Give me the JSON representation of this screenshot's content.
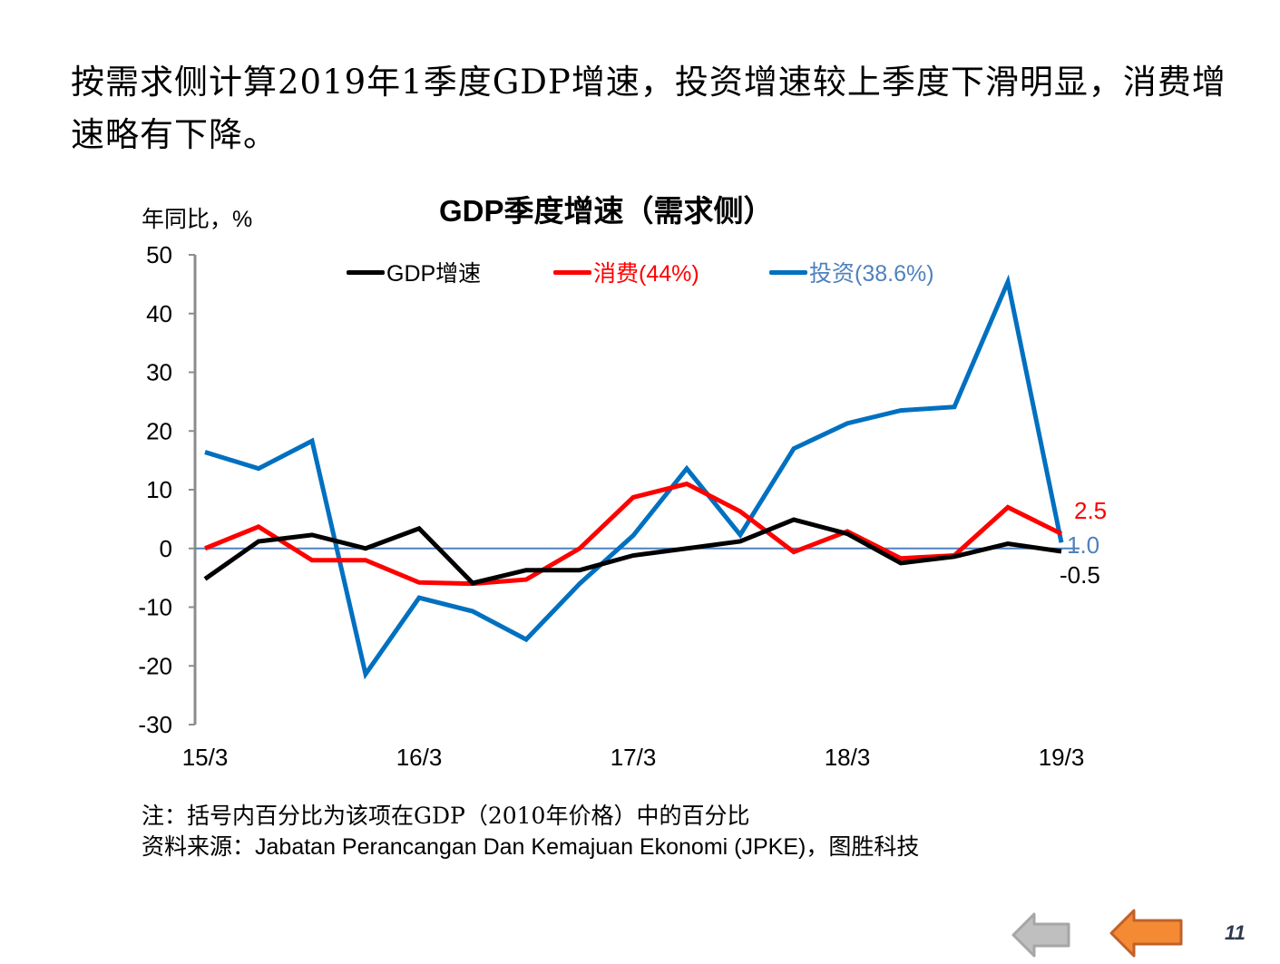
{
  "headline": "按需求侧计算2019年1季度GDP增速，投资增速较上季度下滑明显，消费增速略有下降。",
  "chart_data": {
    "type": "line",
    "title": "GDP季度增速（需求侧）",
    "ylabel": "年同比，%",
    "xlabel": "",
    "ylim": [
      -30,
      50
    ],
    "yticks": [
      -30,
      -20,
      -10,
      0,
      10,
      20,
      30,
      40,
      50
    ],
    "ytick_labels": [
      "-30",
      "-20",
      "-10",
      "0",
      "10",
      "20",
      "30",
      "40",
      "50"
    ],
    "x": [
      "15Q1",
      "15Q2",
      "15Q3",
      "15Q4",
      "16Q1",
      "16Q2",
      "16Q3",
      "16Q4",
      "17Q1",
      "17Q2",
      "17Q3",
      "17Q4",
      "18Q1",
      "18Q2",
      "18Q3",
      "18Q4",
      "19Q1"
    ],
    "xtick_indices": [
      0,
      4,
      8,
      12,
      16
    ],
    "xtick_labels": [
      "15/3",
      "16/3",
      "17/3",
      "18/3",
      "19/3"
    ],
    "grid": false,
    "zero_line": true,
    "legend_position": "top",
    "series": [
      {
        "name": "GDP增速",
        "color": "#000000",
        "legend_text_color": "#000000",
        "values": [
          -5.2,
          1.2,
          2.3,
          0.0,
          3.4,
          -5.9,
          -3.7,
          -3.7,
          -1.2,
          0.0,
          1.2,
          4.9,
          2.5,
          -2.5,
          -1.4,
          0.8,
          -0.5
        ],
        "end_label": "-0.5"
      },
      {
        "name": "消费(44%)",
        "color": "#ff0000",
        "legend_text_color": "#ff0000",
        "values": [
          0.0,
          3.7,
          -2.0,
          -2.0,
          -5.8,
          -6.0,
          -5.3,
          0.0,
          8.7,
          11.0,
          6.3,
          -0.6,
          2.9,
          -1.7,
          -1.2,
          7.0,
          2.5
        ],
        "end_label": "2.5"
      },
      {
        "name": "投资(38.6%)",
        "color": "#0070c0",
        "legend_text_color": "#4f81bd",
        "values": [
          16.4,
          13.6,
          18.3,
          -21.4,
          -8.4,
          -10.7,
          -15.5,
          -6.0,
          2.2,
          13.6,
          2.3,
          17.0,
          21.3,
          23.5,
          24.1,
          45.4,
          1.0
        ],
        "end_label": "1.0"
      }
    ],
    "colors": {
      "axis": "#8c8c8c",
      "zero_line": "#4f81bd"
    }
  },
  "notes": {
    "note_line": "注：括号内百分比为该项在GDP（2010年价格）中的百分比",
    "source_prefix": "资料来源：",
    "source_latin": "Jabatan Perancangan Dan Kemajuan Ekonomi (JPKE)",
    "source_suffix": "，图胜科技"
  },
  "navigation": {
    "back_icon": "arrow-left-gray-icon",
    "prev_icon": "arrow-left-orange-icon",
    "page_number": "11"
  }
}
